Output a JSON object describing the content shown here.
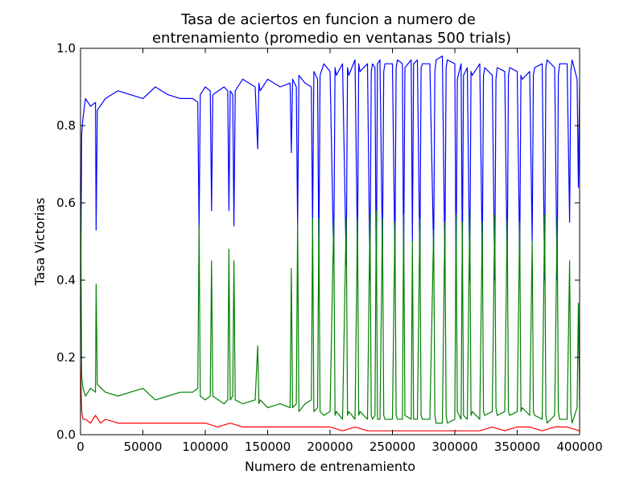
{
  "chart_data": {
    "type": "line",
    "title_lines": [
      "Tasa de aciertos en funcion a numero de",
      "entrenamiento (promedio en ventanas 500 trials)"
    ],
    "xlabel": "Numero de entrenamiento",
    "ylabel": "Tasa Victorias",
    "xlim": [
      0,
      400000
    ],
    "ylim": [
      0,
      1.0
    ],
    "x_ticks": [
      0,
      50000,
      100000,
      150000,
      200000,
      250000,
      300000,
      350000,
      400000
    ],
    "x_tick_labels": [
      "0",
      "50000",
      "100000",
      "150000",
      "200000",
      "250000",
      "300000",
      "350000",
      "400000"
    ],
    "y_ticks": [
      0.0,
      0.2,
      0.4,
      0.6,
      0.8,
      1.0
    ],
    "y_tick_labels": [
      "0.0",
      "0.2",
      "0.4",
      "0.6",
      "0.8",
      "1.0"
    ],
    "grid": false,
    "series": [
      {
        "color": "#0000ff",
        "x": [
          0,
          1000,
          2000,
          4000,
          8000,
          12000,
          12500,
          13500,
          20000,
          30000,
          40000,
          50000,
          60000,
          70000,
          80000,
          90000,
          94000,
          95000,
          96000,
          100000,
          104000,
          105000,
          106000,
          115000,
          118000,
          119000,
          120000,
          122000,
          123000,
          124000,
          130000,
          140000,
          142000,
          143000,
          144000,
          150000,
          160000,
          168000,
          169000,
          170000,
          173000,
          174000,
          175000,
          180000,
          185000,
          186000,
          187000,
          190000,
          191000,
          192000,
          195000,
          200000,
          203000,
          204000,
          205000,
          210000,
          213000,
          214000,
          215000,
          220000,
          222000,
          223000,
          224000,
          230000,
          232000,
          233000,
          234000,
          236000,
          237000,
          238000,
          240000,
          242000,
          243000,
          244000,
          250000,
          252000,
          253000,
          254000,
          258000,
          259000,
          260000,
          265000,
          266000,
          267000,
          270000,
          272000,
          273000,
          274000,
          280000,
          283000,
          284000,
          285000,
          290000,
          292000,
          293000,
          294000,
          300000,
          301000,
          302000,
          305000,
          306000,
          307000,
          310000,
          312000,
          313000,
          314000,
          320000,
          322000,
          323000,
          324000,
          330000,
          332000,
          333000,
          334000,
          340000,
          342000,
          343000,
          344000,
          350000,
          352000,
          353000,
          354000,
          360000,
          362000,
          363000,
          364000,
          370000,
          372000,
          373000,
          374000,
          380000,
          382000,
          383000,
          384000,
          390000,
          392000,
          393000,
          394000,
          398000,
          399000,
          400000
        ],
        "y": [
          0.33,
          0.78,
          0.82,
          0.87,
          0.85,
          0.86,
          0.53,
          0.84,
          0.87,
          0.89,
          0.88,
          0.87,
          0.9,
          0.88,
          0.87,
          0.87,
          0.86,
          0.53,
          0.88,
          0.9,
          0.89,
          0.58,
          0.88,
          0.9,
          0.89,
          0.58,
          0.89,
          0.88,
          0.54,
          0.89,
          0.92,
          0.9,
          0.74,
          0.91,
          0.89,
          0.92,
          0.9,
          0.91,
          0.73,
          0.92,
          0.9,
          0.54,
          0.93,
          0.91,
          0.9,
          0.53,
          0.94,
          0.92,
          0.45,
          0.93,
          0.96,
          0.94,
          0.45,
          0.95,
          0.93,
          0.96,
          0.44,
          0.95,
          0.93,
          0.97,
          0.47,
          0.96,
          0.94,
          0.96,
          0.4,
          0.94,
          0.96,
          0.95,
          0.38,
          0.96,
          0.97,
          0.47,
          0.94,
          0.96,
          0.96,
          0.45,
          0.95,
          0.97,
          0.96,
          0.43,
          0.95,
          0.97,
          0.5,
          0.96,
          0.97,
          0.44,
          0.95,
          0.96,
          0.96,
          0.47,
          0.94,
          0.97,
          0.98,
          0.45,
          0.95,
          0.97,
          0.96,
          0.4,
          0.92,
          0.96,
          0.45,
          0.93,
          0.95,
          0.4,
          0.94,
          0.93,
          0.96,
          0.45,
          0.93,
          0.95,
          0.93,
          0.4,
          0.92,
          0.95,
          0.94,
          0.43,
          0.93,
          0.95,
          0.94,
          0.45,
          0.93,
          0.92,
          0.94,
          0.5,
          0.93,
          0.95,
          0.96,
          0.4,
          0.95,
          0.97,
          0.95,
          0.4,
          0.93,
          0.96,
          0.96,
          0.55,
          0.94,
          0.97,
          0.92,
          0.64,
          0.9
        ]
      },
      {
        "color": "#008000",
        "x": [
          0,
          1000,
          2000,
          4000,
          8000,
          12000,
          12500,
          13500,
          20000,
          30000,
          40000,
          50000,
          60000,
          70000,
          80000,
          90000,
          94000,
          95000,
          96000,
          100000,
          104000,
          105000,
          106000,
          115000,
          118000,
          119000,
          120000,
          122000,
          123000,
          124000,
          130000,
          140000,
          142000,
          143000,
          144000,
          150000,
          160000,
          168000,
          169000,
          170000,
          173000,
          174000,
          175000,
          180000,
          185000,
          186000,
          187000,
          190000,
          191000,
          192000,
          195000,
          200000,
          203000,
          204000,
          205000,
          210000,
          213000,
          214000,
          215000,
          220000,
          222000,
          223000,
          224000,
          230000,
          232000,
          233000,
          234000,
          236000,
          237000,
          238000,
          240000,
          242000,
          243000,
          244000,
          250000,
          252000,
          253000,
          254000,
          258000,
          259000,
          260000,
          265000,
          266000,
          267000,
          270000,
          272000,
          273000,
          274000,
          280000,
          283000,
          284000,
          285000,
          290000,
          292000,
          293000,
          294000,
          300000,
          301000,
          302000,
          305000,
          306000,
          307000,
          310000,
          312000,
          313000,
          314000,
          320000,
          322000,
          323000,
          324000,
          330000,
          332000,
          333000,
          334000,
          340000,
          342000,
          343000,
          344000,
          350000,
          352000,
          353000,
          354000,
          360000,
          362000,
          363000,
          364000,
          370000,
          372000,
          373000,
          374000,
          380000,
          382000,
          383000,
          384000,
          390000,
          392000,
          393000,
          394000,
          398000,
          399000,
          400000
        ],
        "y": [
          0.64,
          0.15,
          0.12,
          0.1,
          0.12,
          0.11,
          0.39,
          0.13,
          0.11,
          0.1,
          0.11,
          0.12,
          0.09,
          0.1,
          0.11,
          0.11,
          0.12,
          0.54,
          0.1,
          0.09,
          0.1,
          0.45,
          0.1,
          0.08,
          0.09,
          0.48,
          0.09,
          0.1,
          0.45,
          0.09,
          0.08,
          0.09,
          0.23,
          0.08,
          0.09,
          0.07,
          0.08,
          0.07,
          0.43,
          0.07,
          0.08,
          0.55,
          0.06,
          0.08,
          0.09,
          0.56,
          0.06,
          0.07,
          0.56,
          0.06,
          0.05,
          0.06,
          0.56,
          0.05,
          0.06,
          0.04,
          0.56,
          0.05,
          0.06,
          0.04,
          0.56,
          0.05,
          0.06,
          0.04,
          0.57,
          0.05,
          0.04,
          0.05,
          0.58,
          0.04,
          0.04,
          0.56,
          0.05,
          0.04,
          0.04,
          0.55,
          0.05,
          0.04,
          0.04,
          0.57,
          0.05,
          0.04,
          0.5,
          0.04,
          0.04,
          0.56,
          0.05,
          0.04,
          0.04,
          0.53,
          0.05,
          0.03,
          0.03,
          0.55,
          0.05,
          0.03,
          0.04,
          0.57,
          0.06,
          0.04,
          0.55,
          0.05,
          0.04,
          0.58,
          0.05,
          0.06,
          0.04,
          0.55,
          0.06,
          0.05,
          0.06,
          0.57,
          0.07,
          0.05,
          0.06,
          0.56,
          0.06,
          0.05,
          0.06,
          0.55,
          0.06,
          0.07,
          0.05,
          0.5,
          0.06,
          0.05,
          0.04,
          0.57,
          0.05,
          0.03,
          0.05,
          0.56,
          0.06,
          0.04,
          0.04,
          0.45,
          0.06,
          0.03,
          0.07,
          0.34,
          0.09
        ]
      },
      {
        "color": "#ff0000",
        "x": [
          0,
          1000,
          2000,
          4000,
          8000,
          12000,
          16000,
          20000,
          30000,
          40000,
          50000,
          60000,
          70000,
          80000,
          90000,
          100000,
          110000,
          120000,
          130000,
          140000,
          150000,
          160000,
          170000,
          180000,
          190000,
          200000,
          210000,
          220000,
          230000,
          240000,
          250000,
          260000,
          270000,
          280000,
          290000,
          300000,
          310000,
          320000,
          330000,
          340000,
          350000,
          360000,
          370000,
          380000,
          390000,
          400000
        ],
        "y": [
          0.18,
          0.06,
          0.04,
          0.04,
          0.03,
          0.05,
          0.03,
          0.04,
          0.03,
          0.03,
          0.03,
          0.03,
          0.03,
          0.03,
          0.03,
          0.03,
          0.02,
          0.03,
          0.02,
          0.02,
          0.02,
          0.02,
          0.02,
          0.02,
          0.02,
          0.02,
          0.01,
          0.02,
          0.01,
          0.01,
          0.01,
          0.01,
          0.01,
          0.01,
          0.01,
          0.01,
          0.01,
          0.01,
          0.02,
          0.01,
          0.02,
          0.02,
          0.01,
          0.02,
          0.02,
          0.01
        ]
      }
    ]
  }
}
